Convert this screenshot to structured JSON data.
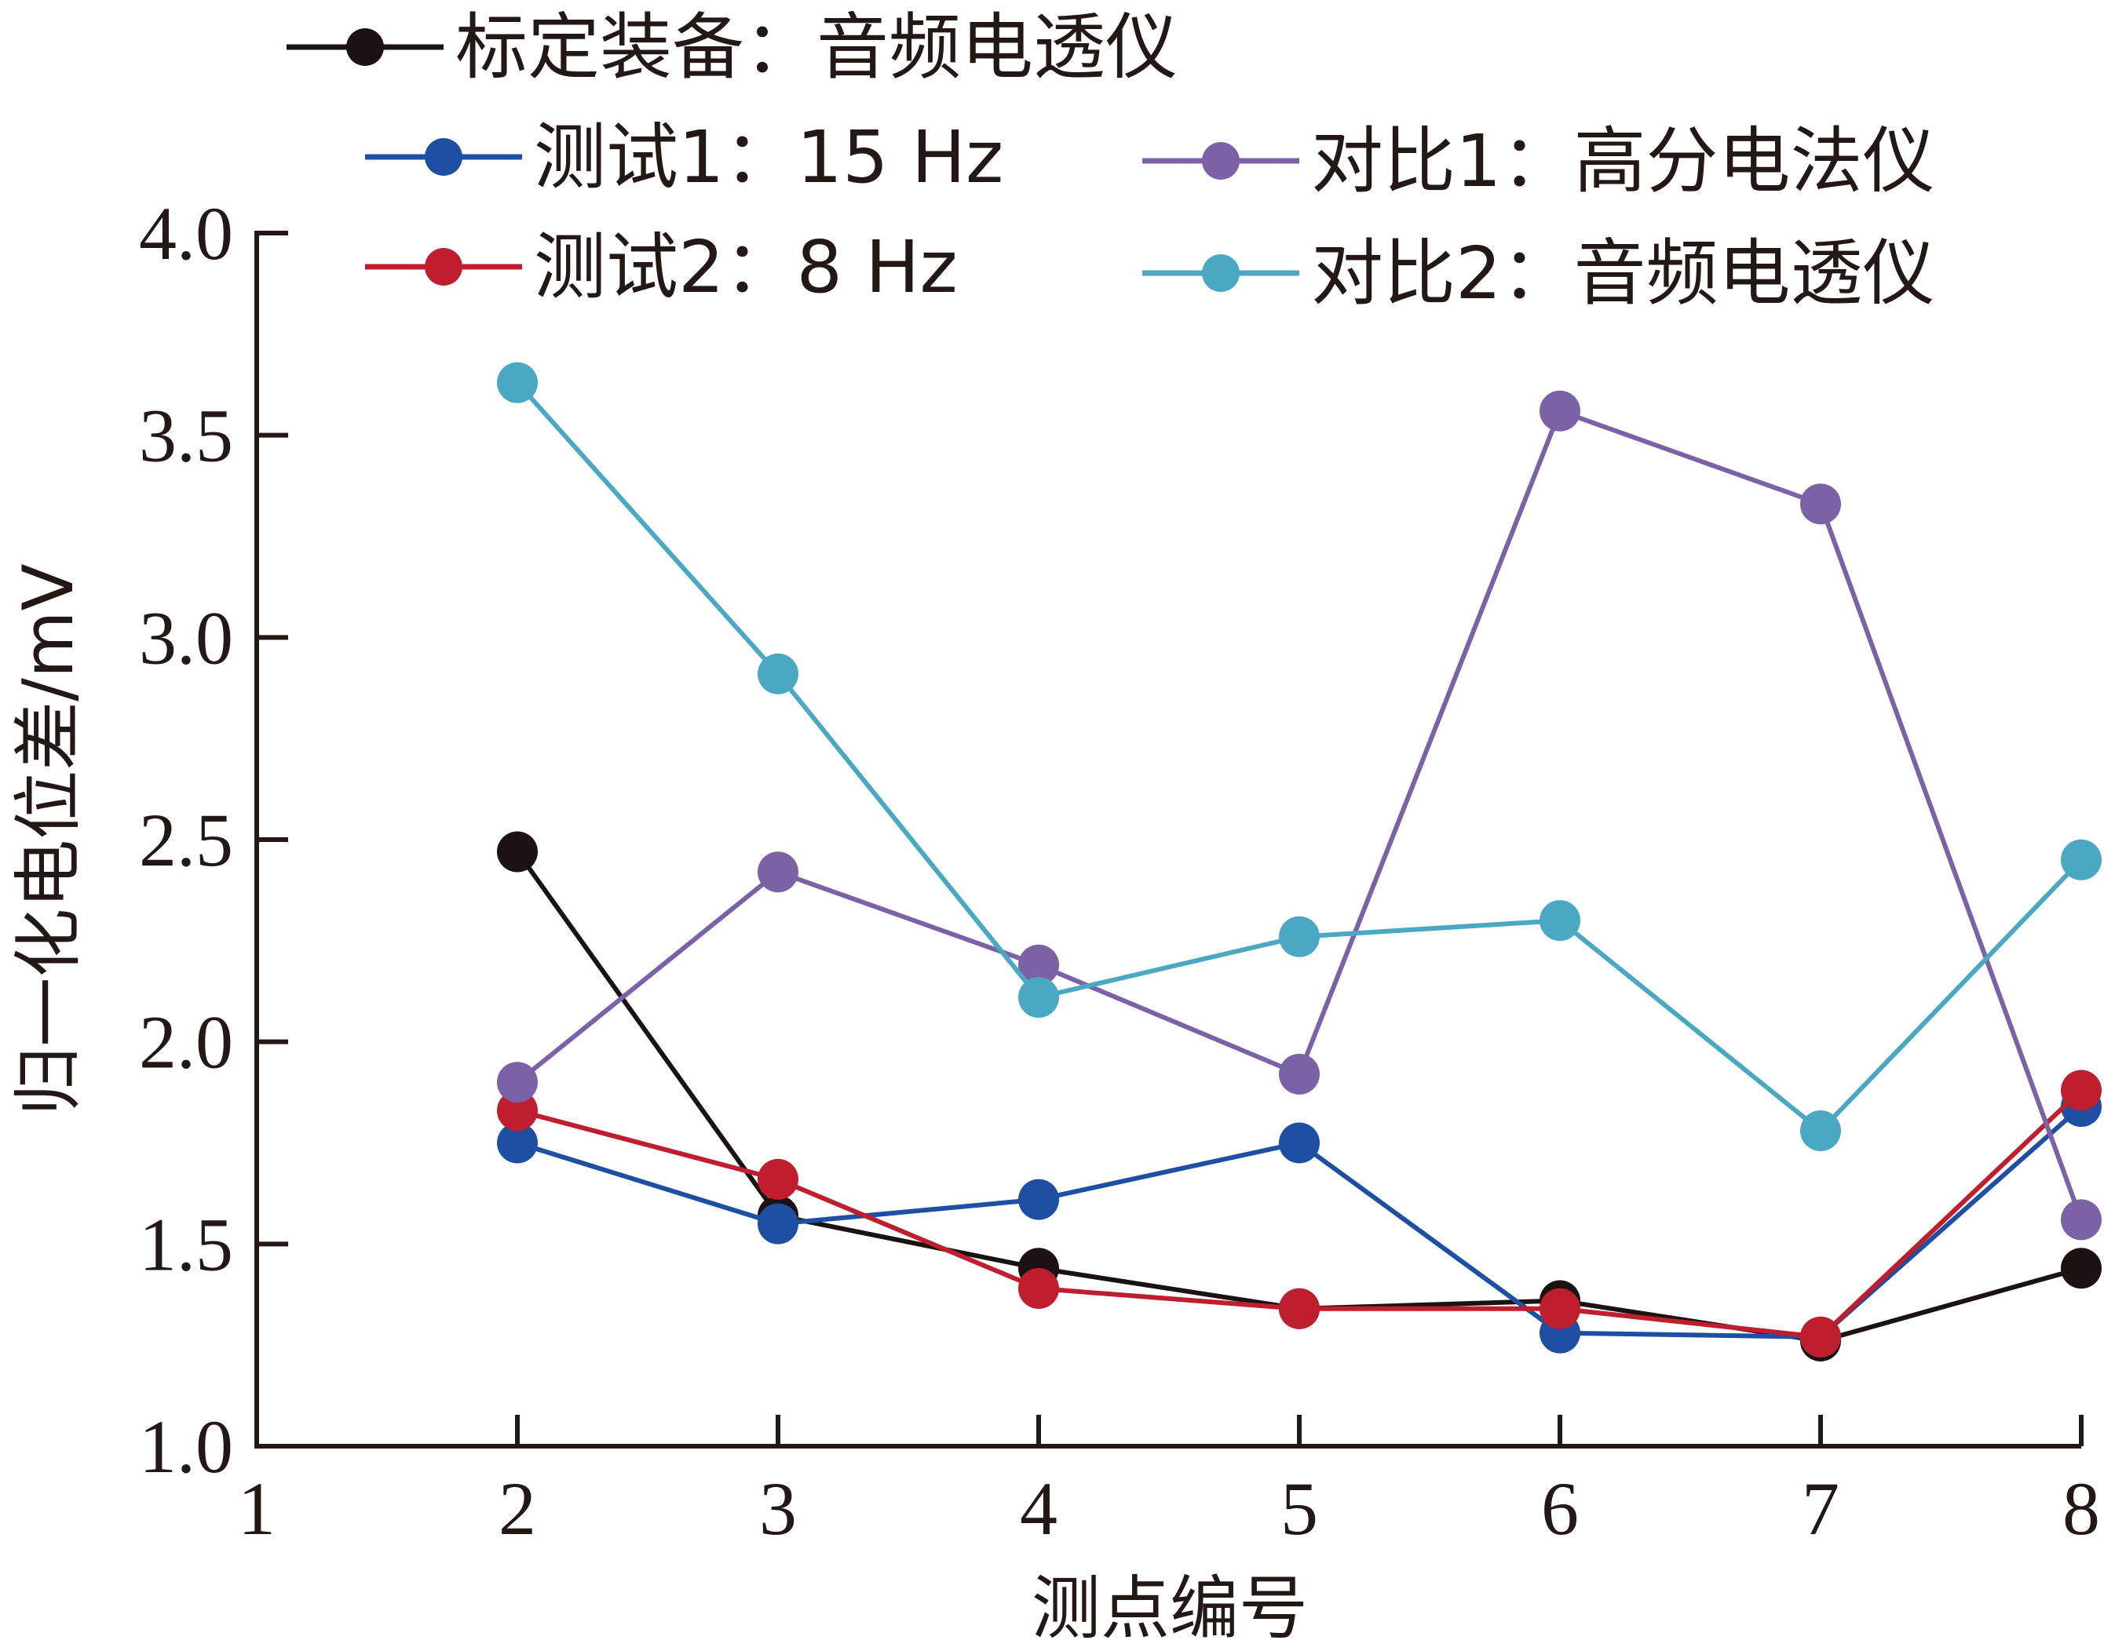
{
  "chart_data": {
    "type": "line",
    "title": "",
    "xlabel": "测点编号",
    "ylabel": "归一化电位差/mV",
    "xlim": [
      1,
      8
    ],
    "ylim": [
      1.0,
      4.0
    ],
    "x_ticks": [
      "1",
      "2",
      "3",
      "4",
      "5",
      "6",
      "7",
      "8"
    ],
    "y_ticks": [
      "1.0",
      "1.5",
      "2.0",
      "2.5",
      "3.0",
      "3.5",
      "4.0"
    ],
    "grid": false,
    "legend_position": "top",
    "x": [
      2,
      3,
      4,
      5,
      6,
      7,
      8
    ],
    "series": [
      {
        "name": "标定装备：音频电透仪",
        "color": "#1a1311",
        "values": [
          2.47,
          1.57,
          1.44,
          1.34,
          1.36,
          1.26,
          1.44
        ]
      },
      {
        "name": "测试1：15 Hz",
        "color": "#1e4fa3",
        "values": [
          1.75,
          1.55,
          1.61,
          1.75,
          1.28,
          1.27,
          1.84
        ]
      },
      {
        "name": "测试2：8 Hz",
        "color": "#be1e2d",
        "values": [
          1.83,
          1.66,
          1.39,
          1.34,
          1.34,
          1.27,
          1.88
        ]
      },
      {
        "name": "对比1：高分电法仪",
        "color": "#7b62a6",
        "values": [
          1.9,
          2.42,
          2.19,
          1.92,
          3.56,
          3.33,
          1.56
        ]
      },
      {
        "name": "对比2：音频电透仪",
        "color": "#4ba8c2",
        "values": [
          3.63,
          2.91,
          2.11,
          2.26,
          2.3,
          1.78,
          2.45
        ]
      }
    ]
  }
}
